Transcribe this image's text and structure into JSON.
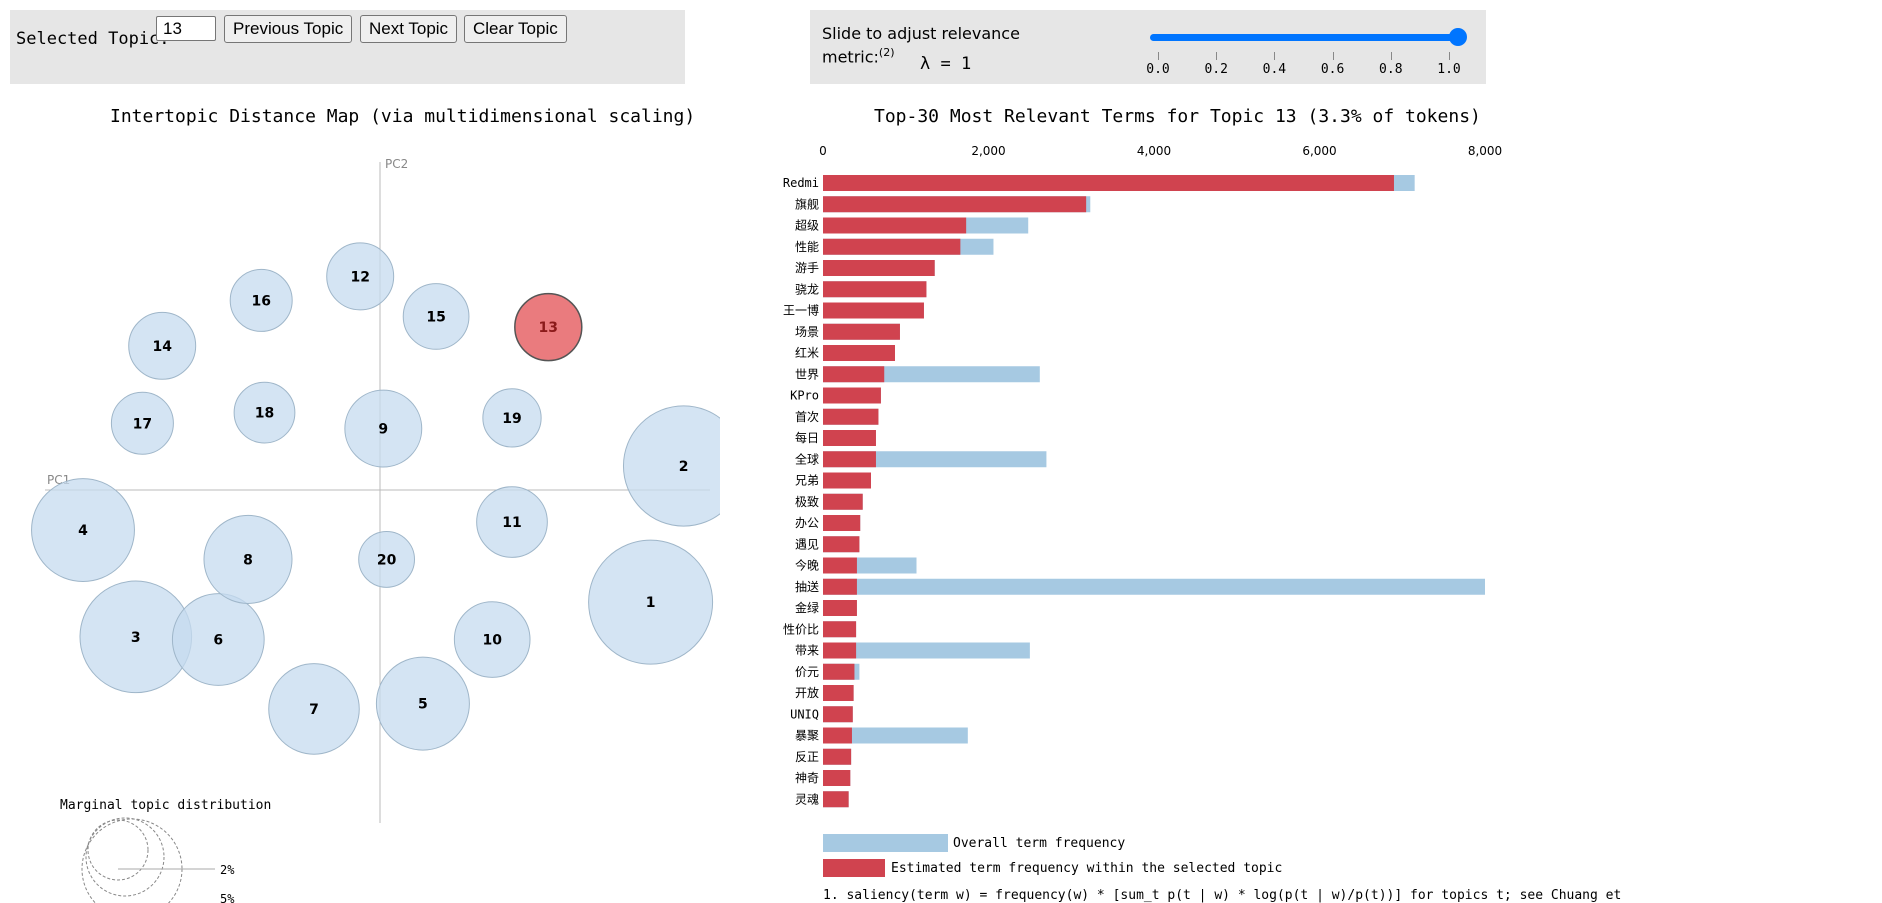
{
  "controls": {
    "selected_topic_label": "Selected Topic:",
    "selected_topic_value": "13",
    "prev_label": "Previous Topic",
    "next_label": "Next Topic",
    "clear_label": "Clear Topic",
    "slider_label": "Slide to adjust relevance metric:",
    "slider_footnote_mark": "(2)",
    "lambda_text": "λ = 1",
    "lambda_value": 1.0,
    "slider_ticks": [
      "0.0",
      "0.2",
      "0.4",
      "0.6",
      "0.8",
      "1.0"
    ]
  },
  "colors": {
    "topic_blue": "#c6dbef",
    "topic_selected": "#e55a5e",
    "bar_overall": "#a6c9e2",
    "bar_topic": "#d0434f"
  },
  "chart_data": [
    {
      "type": "scatter",
      "title": "Intertopic Distance Map (via multidimensional scaling)",
      "xlabel": "PC1",
      "ylabel": "PC2",
      "xlim": [
        -1,
        1
      ],
      "ylim": [
        -1,
        1
      ],
      "selected_topic": 13,
      "topics": [
        {
          "id": 1,
          "x": 0.82,
          "y": -0.42,
          "size": 1.0
        },
        {
          "id": 2,
          "x": 0.92,
          "y": 0.09,
          "size": 0.97
        },
        {
          "id": 3,
          "x": -0.74,
          "y": -0.55,
          "size": 0.9
        },
        {
          "id": 4,
          "x": -0.9,
          "y": -0.15,
          "size": 0.83
        },
        {
          "id": 5,
          "x": 0.13,
          "y": -0.8,
          "size": 0.75
        },
        {
          "id": 6,
          "x": -0.49,
          "y": -0.56,
          "size": 0.74
        },
        {
          "id": 7,
          "x": -0.2,
          "y": -0.82,
          "size": 0.73
        },
        {
          "id": 8,
          "x": -0.4,
          "y": -0.26,
          "size": 0.71
        },
        {
          "id": 9,
          "x": 0.01,
          "y": 0.23,
          "size": 0.62
        },
        {
          "id": 10,
          "x": 0.34,
          "y": -0.56,
          "size": 0.61
        },
        {
          "id": 11,
          "x": 0.4,
          "y": -0.12,
          "size": 0.57
        },
        {
          "id": 12,
          "x": -0.06,
          "y": 0.8,
          "size": 0.54
        },
        {
          "id": 13,
          "x": 0.51,
          "y": 0.61,
          "size": 0.54
        },
        {
          "id": 14,
          "x": -0.66,
          "y": 0.54,
          "size": 0.54
        },
        {
          "id": 15,
          "x": 0.17,
          "y": 0.65,
          "size": 0.53
        },
        {
          "id": 16,
          "x": -0.36,
          "y": 0.71,
          "size": 0.5
        },
        {
          "id": 17,
          "x": -0.72,
          "y": 0.25,
          "size": 0.5
        },
        {
          "id": 18,
          "x": -0.35,
          "y": 0.29,
          "size": 0.49
        },
        {
          "id": 19,
          "x": 0.4,
          "y": 0.27,
          "size": 0.47
        },
        {
          "id": 20,
          "x": 0.02,
          "y": -0.26,
          "size": 0.45
        }
      ],
      "marginal": {
        "title": "Marginal topic distribution",
        "labels": [
          "2%",
          "5%"
        ]
      }
    },
    {
      "type": "bar",
      "orientation": "horizontal",
      "title": "Top-30 Most Relevant Terms for Topic 13 (3.3% of tokens)",
      "xlim": [
        0,
        8000
      ],
      "xticks": [
        "0",
        "2,000",
        "4,000",
        "6,000",
        "8,000"
      ],
      "categories": [
        "Redmi",
        "旗舰",
        "超级",
        "性能",
        "游手",
        "骁龙",
        "王一博",
        "场景",
        "红米",
        "世界",
        "KPro",
        "首次",
        "每日",
        "全球",
        "兄弟",
        "极致",
        "办公",
        "遇见",
        "今晚",
        "抽送",
        "金绿",
        "性价比",
        "带来",
        "价元",
        "开放",
        "UNIQ",
        "暴聚",
        "反正",
        "神奇",
        "灵魂"
      ],
      "series": [
        {
          "name": "Overall term frequency",
          "values": [
            7150,
            3230,
            2480,
            2060,
            1350,
            1250,
            1220,
            930,
            870,
            2620,
            700,
            670,
            640,
            2700,
            580,
            480,
            450,
            440,
            1130,
            8000,
            410,
            400,
            2500,
            440,
            370,
            360,
            1750,
            340,
            330,
            310
          ]
        },
        {
          "name": "Estimated term frequency within the selected topic",
          "values": [
            6900,
            3180,
            1730,
            1660,
            1350,
            1250,
            1220,
            930,
            870,
            740,
            700,
            670,
            640,
            640,
            580,
            480,
            450,
            440,
            410,
            410,
            410,
            400,
            400,
            380,
            370,
            360,
            350,
            340,
            330,
            310
          ]
        }
      ],
      "footnote": "1. saliency(term w) = frequency(w) * [sum_t p(t | w) * log(p(t | w)/p(t))] for topics t; see Chuang et"
    }
  ]
}
